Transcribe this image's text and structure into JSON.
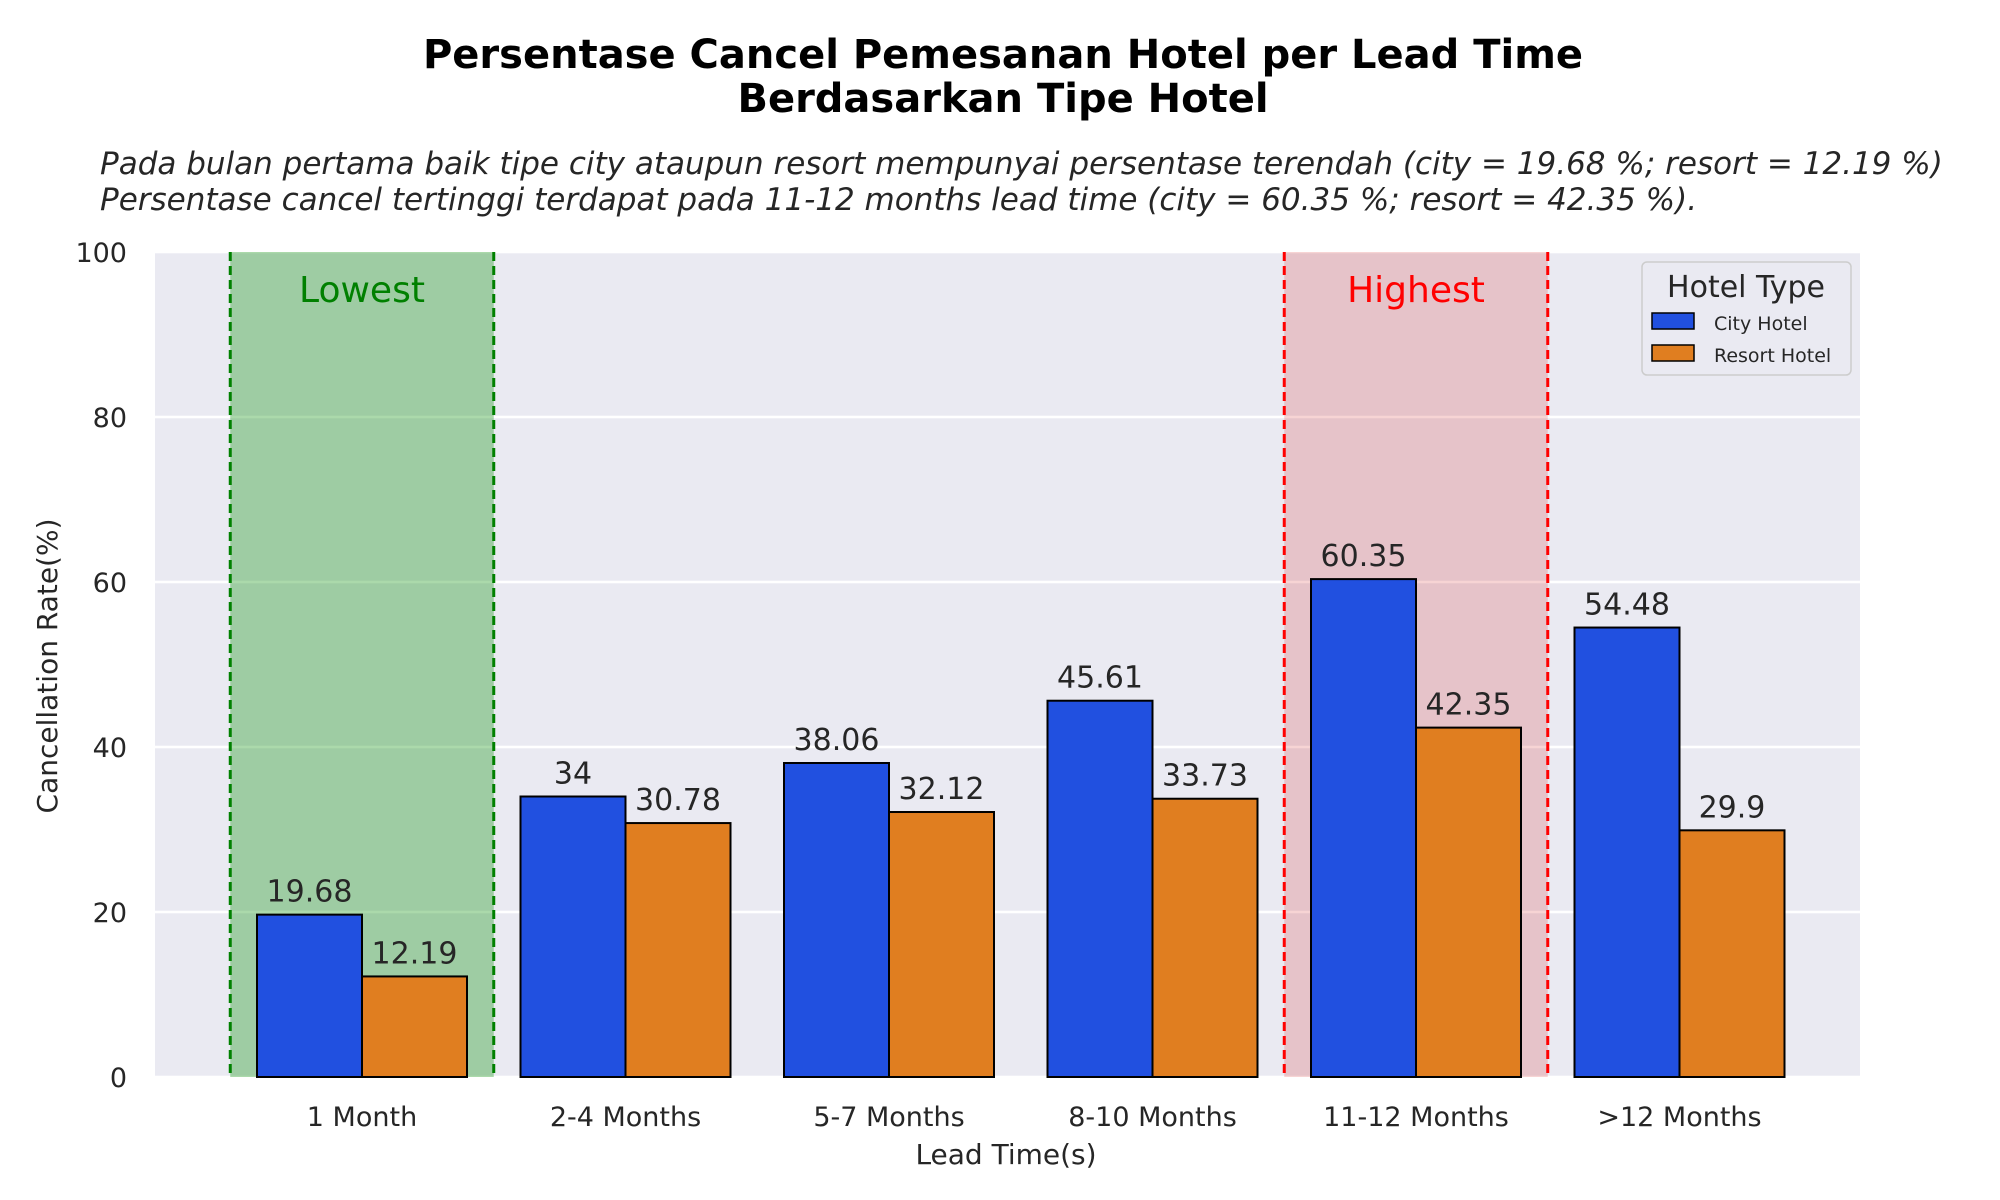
{
  "chart_data": {
    "type": "bar",
    "title": [
      "Persentase Cancel Pemesanan Hotel per Lead Time",
      "Berdasarkan Tipe Hotel"
    ],
    "subtitle": [
      "Pada bulan pertama baik tipe city ataupun resort mempunyai persentase terendah (city = 19.68 %; resort = 12.19 %)",
      "Persentase cancel tertinggi terdapat pada 11-12 months lead time (city = 60.35 %; resort = 42.35 %)."
    ],
    "xlabel": "Lead Time(s)",
    "ylabel": "Cancellation Rate(%)",
    "ylim": [
      0,
      100
    ],
    "yticks": [
      0,
      20,
      40,
      60,
      80,
      100
    ],
    "grid": true,
    "categories": [
      "1 Month",
      "2-4 Months",
      "5-7 Months",
      "8-10 Months",
      "11-12 Months",
      ">12 Months"
    ],
    "series": [
      {
        "name": "City Hotel",
        "color": "#2150e0",
        "values": [
          19.68,
          34,
          38.06,
          45.61,
          60.35,
          54.48
        ],
        "labels": [
          "19.68",
          "34",
          "38.06",
          "45.61",
          "60.35",
          "54.48"
        ]
      },
      {
        "name": "Resort Hotel",
        "color": "#e07e20",
        "values": [
          12.19,
          30.78,
          32.12,
          33.73,
          42.35,
          29.9
        ],
        "labels": [
          "12.19",
          "30.78",
          "32.12",
          "33.73",
          "42.35",
          "29.9"
        ]
      }
    ],
    "highlights": [
      {
        "label": "Lowest",
        "category_index": 0,
        "color": "#008000",
        "fill": "#2ca02c",
        "fill_opacity": 0.4
      },
      {
        "label": "Highest",
        "category_index": 4,
        "color": "#ff0000",
        "fill": "#d62728",
        "fill_opacity": 0.2
      }
    ],
    "legend": {
      "title": "Hotel Type",
      "placement": "top-right"
    },
    "background": "#eaeaf2"
  }
}
